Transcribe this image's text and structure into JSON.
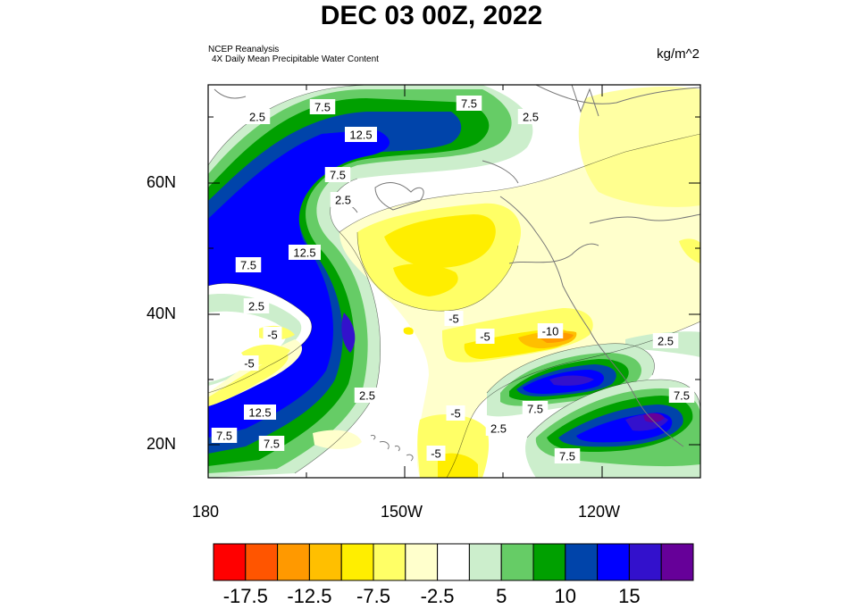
{
  "title": "DEC 03 00Z, 2022",
  "source_line1": "NCEP Reanalysis",
  "source_line2": "4X Daily Mean  Precipitable Water Content",
  "units": "kg/m^2",
  "lat_ticks": [
    "60N",
    "40N",
    "20N"
  ],
  "lon_ticks": [
    "180",
    "150W",
    "120W"
  ],
  "contour_labels": [
    "2.5",
    "7.5",
    "7.5",
    "12.5",
    "2.5",
    "7.5",
    "2.5",
    "12.5",
    "7.5",
    "2.5",
    "-5",
    "-5",
    "12.5",
    "7.5",
    "7.5",
    "2.5",
    "-5",
    "-5",
    "-10",
    "-5",
    "-5",
    "2.5",
    "7.5",
    "7.5",
    "2.5",
    "7.5"
  ],
  "colorbar": {
    "colors": [
      "#ff0000",
      "#ff5500",
      "#ff9900",
      "#ffbf00",
      "#ffee00",
      "#ffff66",
      "#ffffcc",
      "#ffffff",
      "#cceecc",
      "#66cc66",
      "#00a000",
      "#0044aa",
      "#0000ff",
      "#3311cc",
      "#660099"
    ],
    "labels": [
      "-17.5",
      "-12.5",
      "-7.5",
      "-2.5",
      "5",
      "10",
      "15"
    ]
  }
}
